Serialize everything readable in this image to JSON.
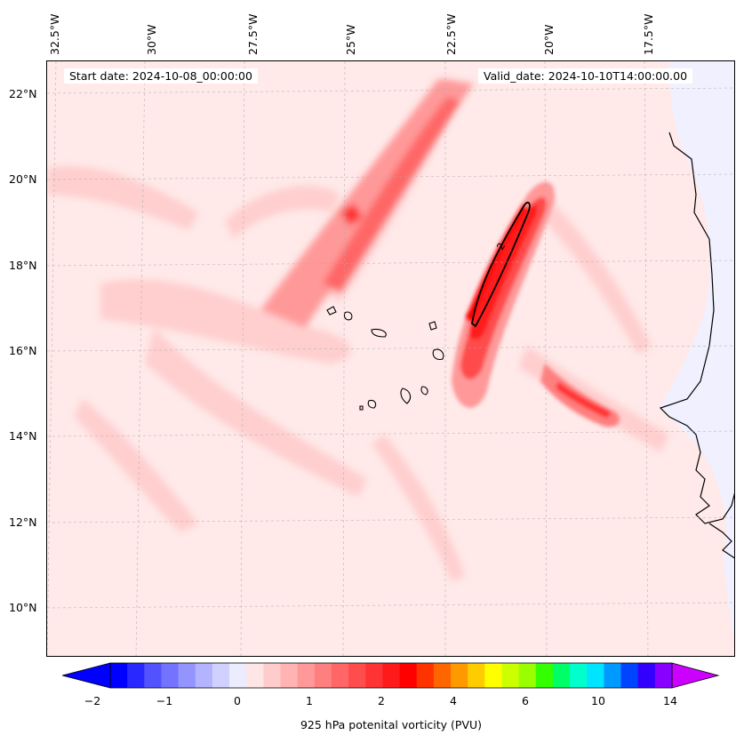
{
  "header": {
    "start_date": "Start date: 2024-10-08_00:00:00",
    "valid_date": "Valid_date: 2024-10-10T14:00:00.00"
  },
  "axes": {
    "lon_ticks": [
      "32.5°W",
      "30°W",
      "27.5°W",
      "25°W",
      "22.5°W",
      "20°W",
      "17.5°W"
    ],
    "lat_ticks": [
      "22°N",
      "20°N",
      "18°N",
      "16°N",
      "14°N",
      "12°N",
      "10°N"
    ],
    "extent": {
      "lon": [
        -33,
        -15
      ],
      "lat": [
        8.9,
        22.8
      ]
    }
  },
  "colorbar": {
    "label": "925 hPa potenital vorticity (PVU)",
    "ticks": [
      "−2",
      "−1",
      "0",
      "1",
      "2",
      "4",
      "6",
      "10",
      "14"
    ],
    "colors": [
      "#0000ff",
      "#2929ff",
      "#5252ff",
      "#7373ff",
      "#9494ff",
      "#b3b3ff",
      "#d1d1ff",
      "#ececff",
      "#ffe6e6",
      "#ffcccc",
      "#ffb3b3",
      "#ff9999",
      "#ff7f7f",
      "#ff6666",
      "#ff4c4c",
      "#ff3333",
      "#ff1a1a",
      "#ff0000",
      "#ff3300",
      "#ff6600",
      "#ff9900",
      "#ffcc00",
      "#ffff00",
      "#ccff00",
      "#99ff00",
      "#33ff00",
      "#00ff66",
      "#00ffcc",
      "#00e5ff",
      "#0099ff",
      "#0044ff",
      "#3300ff",
      "#8800ff"
    ],
    "extend_low_color": "#0000ff",
    "extend_high_color": "#cc00ff"
  },
  "map": {
    "background_color": "#ffe9e9",
    "land_color": "#f0f0ff",
    "contour_value": "2"
  }
}
